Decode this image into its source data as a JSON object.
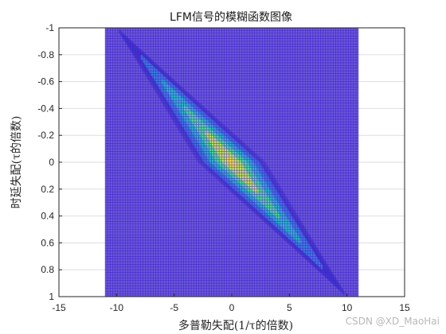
{
  "chart_data": {
    "type": "heatmap",
    "title": "LFM信号的模糊函数图像",
    "xlabel": "多普勒失配(1/τ的倍数)",
    "ylabel": "时延失配(τ的倍数)",
    "xlim": [
      -15,
      15
    ],
    "ylim": [
      -1,
      1
    ],
    "y_direction": "reverse",
    "x_ticks": [
      -15,
      -10,
      -5,
      0,
      5,
      10,
      15
    ],
    "x_tick_labels": [
      "-15",
      "-10",
      "-5",
      "0",
      "5",
      "10",
      "15"
    ],
    "y_ticks": [
      -1,
      -0.8,
      -0.6,
      -0.4,
      -0.2,
      0,
      0.2,
      0.4,
      0.6,
      0.8,
      1
    ],
    "y_tick_labels": [
      "-1",
      "-0.8",
      "-0.6",
      "-0.4",
      "-0.2",
      "0",
      "0.2",
      "0.4",
      "0.6",
      "0.8",
      "1"
    ],
    "grid": true,
    "surface": {
      "x_range": [
        -11,
        11
      ],
      "y_range": [
        -1,
        1
      ],
      "x_samples": 101,
      "y_samples": 101,
      "bandwidth_time_product": 10,
      "ridge": "y = x / 10",
      "peak": {
        "x": 0,
        "y": 0,
        "value": 1
      },
      "mesh_color": "#3a18c8",
      "background_color": "#6a58d8",
      "colormap": [
        "#3a2fc8",
        "#3f7fe0",
        "#2fb8c8",
        "#58d898",
        "#c8e060",
        "#f8d840"
      ]
    }
  },
  "watermark": "CSDN @XD_MaoHai"
}
